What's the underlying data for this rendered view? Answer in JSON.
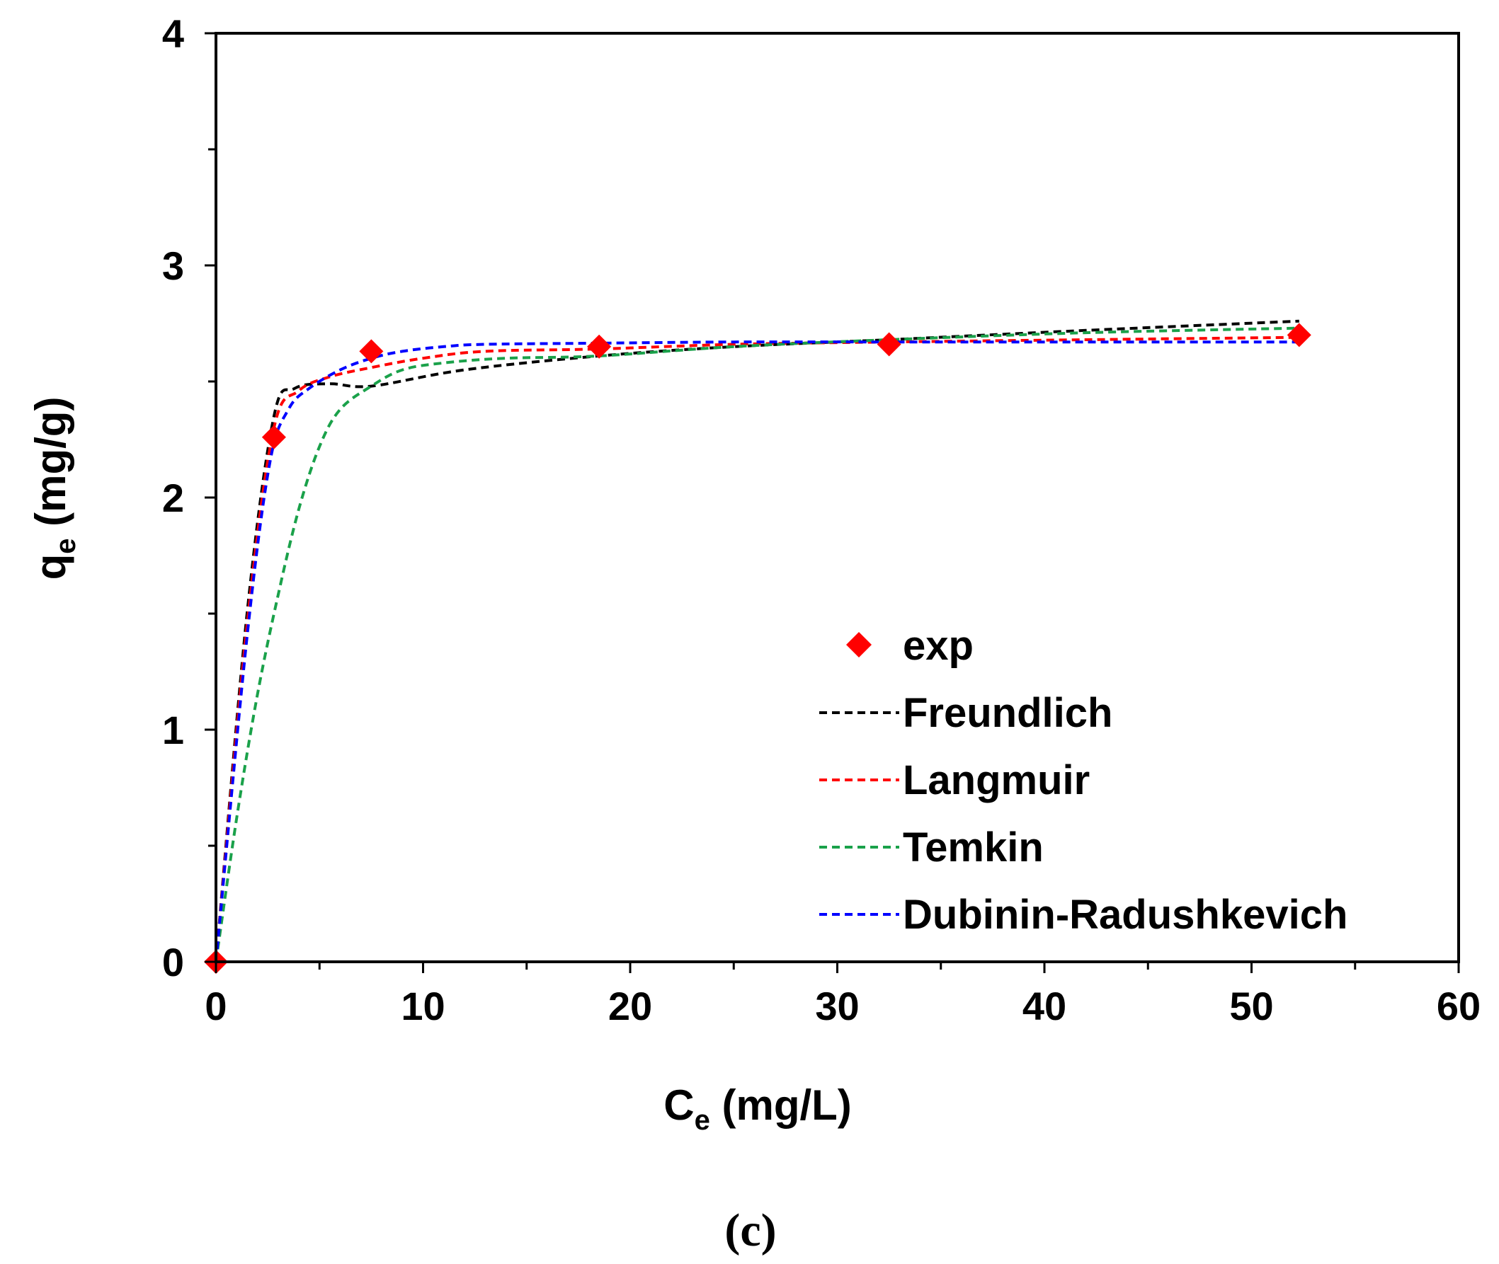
{
  "chart_data": {
    "type": "scatter",
    "panel_label": "(c)",
    "x_axis": {
      "label_main": "C",
      "label_sub": "e",
      "label_unit": " (mg/L)",
      "range": [
        0,
        60
      ],
      "major_ticks": [
        0,
        10,
        20,
        30,
        40,
        50,
        60
      ],
      "minor_step": 5
    },
    "y_axis": {
      "label_main": "q",
      "label_sub": "e",
      "label_unit": " (mg/g)",
      "range": [
        0,
        4
      ],
      "major_ticks": [
        0,
        1,
        2,
        3,
        4
      ],
      "minor_step": 0.5
    },
    "grid": false,
    "legend_position": "bottom-right",
    "experimental": {
      "name": "exp",
      "color": "#ff0000",
      "marker": "diamond",
      "x": [
        0,
        2.8,
        7.5,
        18.5,
        32.5,
        52.3
      ],
      "y": [
        0,
        2.26,
        2.63,
        2.65,
        2.66,
        2.7
      ]
    },
    "series": [
      {
        "name": "Freundlich",
        "color": "#000000",
        "style": "dashed",
        "x": [
          0,
          1.5,
          2.8,
          3.8,
          5.5,
          7.5,
          12,
          18.5,
          25,
          32.5,
          42,
          52.3
        ],
        "y": [
          0,
          1.5,
          2.35,
          2.47,
          2.49,
          2.48,
          2.55,
          2.61,
          2.65,
          2.68,
          2.72,
          2.76
        ]
      },
      {
        "name": "Langmuir",
        "color": "#ff0000",
        "style": "dashed",
        "x": [
          0,
          1.5,
          2.8,
          4,
          5.5,
          7.5,
          10,
          13,
          18.5,
          25,
          32.5,
          42,
          52.3
        ],
        "y": [
          0,
          1.45,
          2.3,
          2.46,
          2.52,
          2.56,
          2.6,
          2.63,
          2.64,
          2.66,
          2.67,
          2.68,
          2.69
        ]
      },
      {
        "name": "Temkin",
        "color": "#1aa14a",
        "style": "dashed",
        "x": [
          0,
          1,
          2,
          3,
          4,
          5,
          6,
          7.5,
          9,
          11,
          14,
          18.5,
          25,
          32.5,
          42,
          52.3
        ],
        "y": [
          0,
          0.62,
          1.15,
          1.58,
          1.95,
          2.22,
          2.38,
          2.48,
          2.55,
          2.58,
          2.6,
          2.61,
          2.65,
          2.68,
          2.71,
          2.73
        ]
      },
      {
        "name": "Dubinin-Radushkevich",
        "color": "#0000ff",
        "style": "dashed",
        "x": [
          0,
          1.5,
          2.6,
          3.5,
          4.5,
          6,
          7.5,
          9,
          11,
          13,
          18.5,
          25,
          32.5,
          42,
          52.3
        ],
        "y": [
          0,
          1.4,
          2.15,
          2.38,
          2.47,
          2.55,
          2.6,
          2.63,
          2.65,
          2.66,
          2.665,
          2.67,
          2.67,
          2.67,
          2.67
        ]
      }
    ]
  }
}
